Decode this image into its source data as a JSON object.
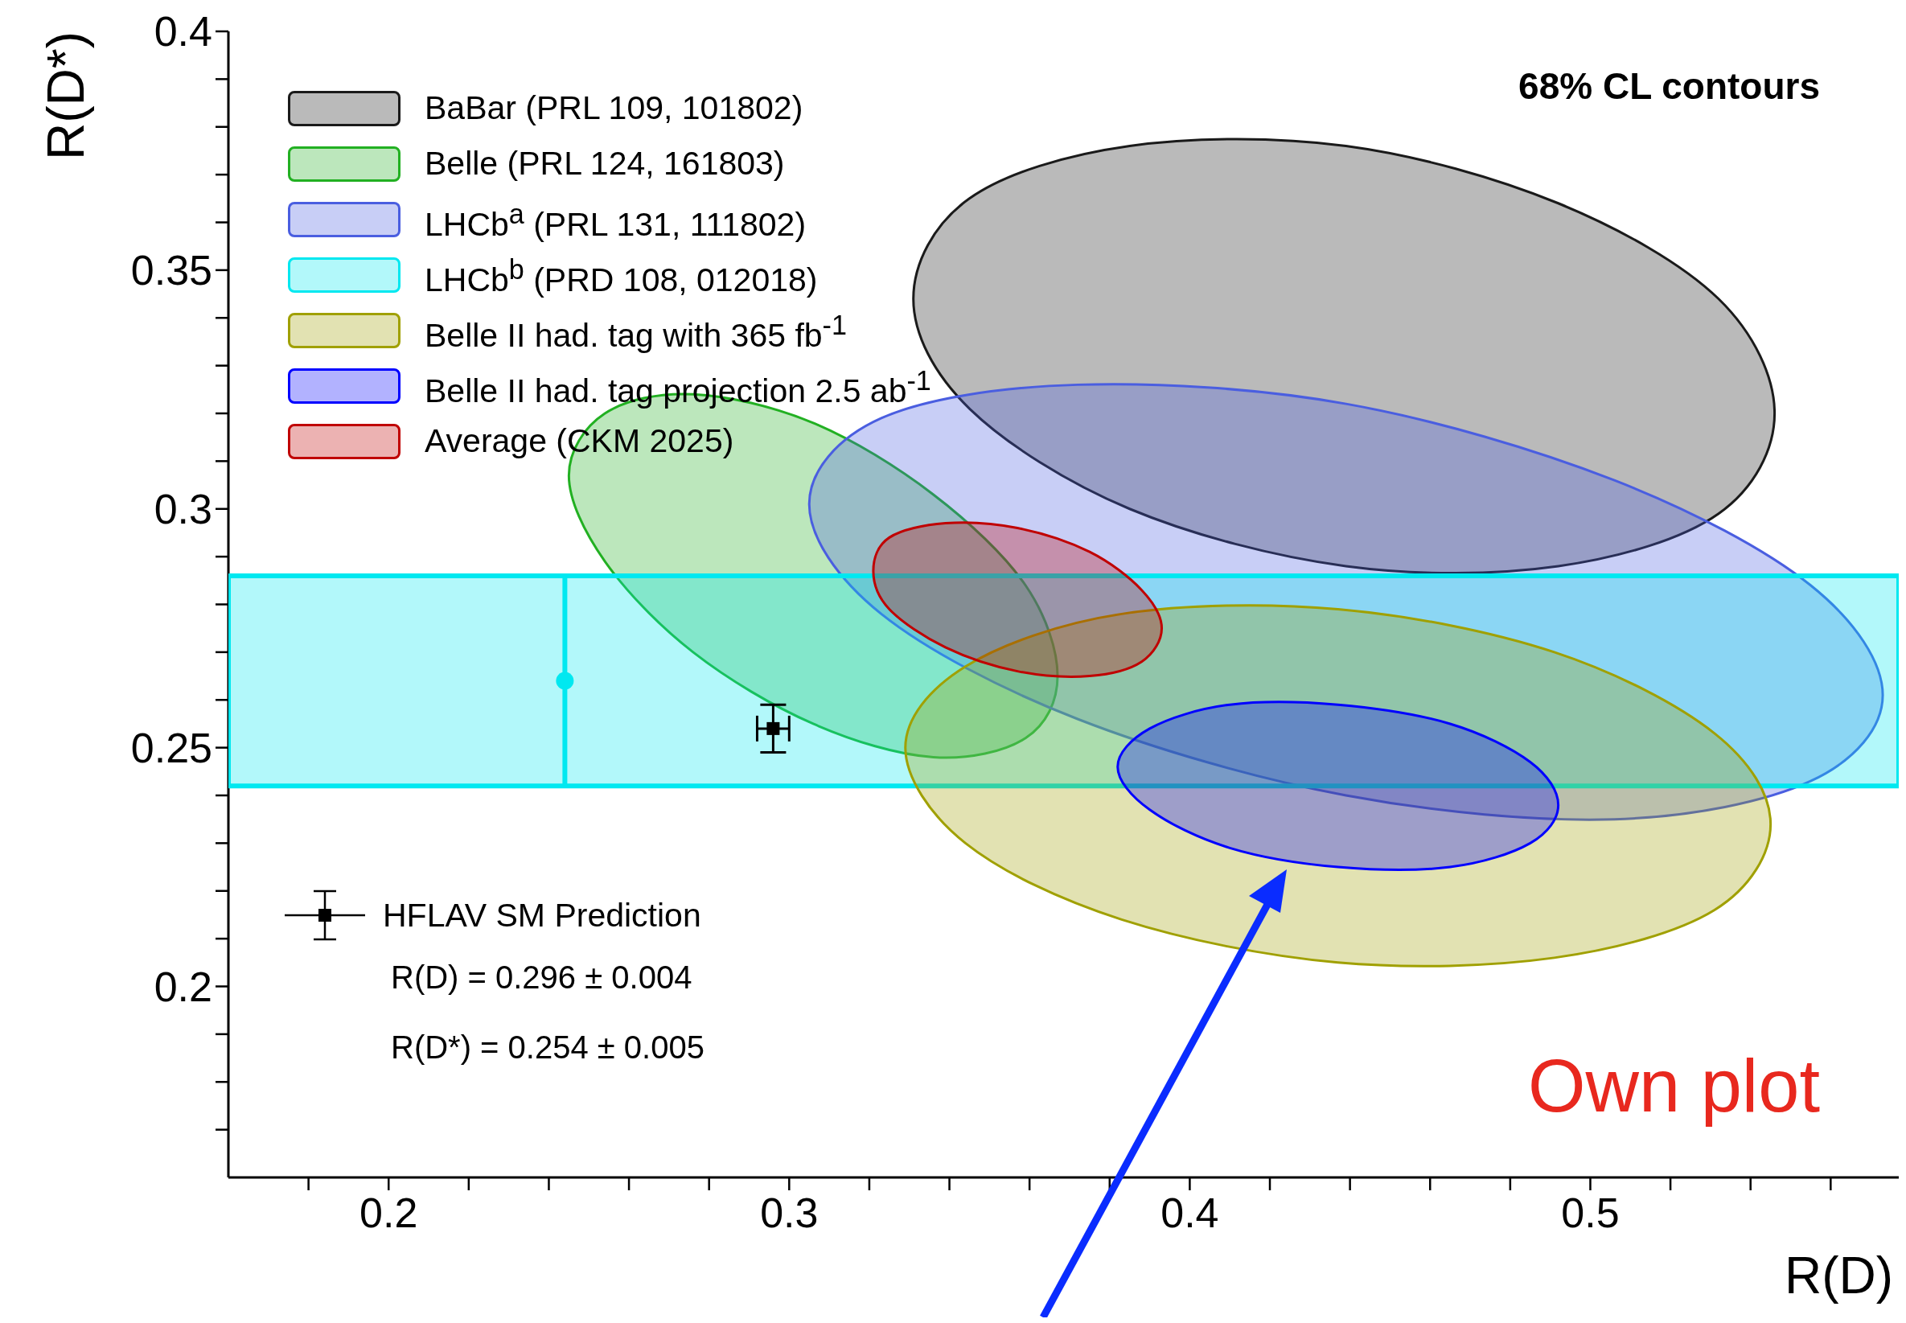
{
  "chart_data": {
    "type": "area",
    "xlabel": "R(D)",
    "ylabel": "R(D*)",
    "xlim": [
      0.16,
      0.577
    ],
    "ylim": [
      0.16,
      0.4
    ],
    "xticks": [
      {
        "value": 0.18,
        "label": null
      },
      0.2,
      {
        "value": 0.22,
        "label": null
      },
      {
        "value": 0.24,
        "label": null
      },
      {
        "value": 0.26,
        "label": null
      },
      {
        "value": 0.28,
        "label": null
      },
      0.3,
      {
        "value": 0.32,
        "label": null
      },
      {
        "value": 0.34,
        "label": null
      },
      {
        "value": 0.36,
        "label": null
      },
      {
        "value": 0.38,
        "label": null
      },
      0.4,
      {
        "value": 0.42,
        "label": null
      },
      {
        "value": 0.44,
        "label": null
      },
      {
        "value": 0.46,
        "label": null
      },
      {
        "value": 0.48,
        "label": null
      },
      0.5,
      {
        "value": 0.52,
        "label": null
      },
      {
        "value": 0.54,
        "label": null
      },
      {
        "value": 0.56,
        "label": null
      }
    ],
    "yticks": [
      {
        "value": 0.17,
        "label": null
      },
      {
        "value": 0.18,
        "label": null
      },
      {
        "value": 0.19,
        "label": null
      },
      0.2,
      {
        "value": 0.21,
        "label": null
      },
      {
        "value": 0.22,
        "label": null
      },
      {
        "value": 0.23,
        "label": null
      },
      {
        "value": 0.24,
        "label": null
      },
      0.25,
      {
        "value": 0.26,
        "label": null
      },
      {
        "value": 0.27,
        "label": null
      },
      {
        "value": 0.28,
        "label": null
      },
      {
        "value": 0.29,
        "label": null
      },
      0.3,
      {
        "value": 0.31,
        "label": null
      },
      {
        "value": 0.32,
        "label": null
      },
      {
        "value": 0.33,
        "label": null
      },
      {
        "value": 0.34,
        "label": null
      },
      0.35,
      {
        "value": 0.36,
        "label": null
      },
      {
        "value": 0.37,
        "label": null
      },
      {
        "value": 0.38,
        "label": null
      },
      {
        "value": 0.39,
        "label": null
      },
      0.4
    ],
    "legend": "top left",
    "series": [
      {
        "name": "BaBar (PRL 109, 101802)",
        "color": "#1a1a1a",
        "x": [
          0.546,
          0.532,
          0.492,
          0.439,
          0.385,
          0.345,
          0.331,
          0.345,
          0.385,
          0.439,
          0.492,
          0.532
        ],
        "values": [
          0.32,
          0.299,
          0.288,
          0.288,
          0.3,
          0.321,
          0.344,
          0.365,
          0.376,
          0.376,
          0.364,
          0.344
        ]
      },
      {
        "name": "Belle (PRL 124, 161803)",
        "color": "#22b022",
        "x": [
          0.367,
          0.359,
          0.336,
          0.306,
          0.276,
          0.254,
          0.245,
          0.254,
          0.276,
          0.306,
          0.336,
          0.359
        ],
        "values": [
          0.265,
          0.252,
          0.248,
          0.255,
          0.27,
          0.289,
          0.307,
          0.32,
          0.324,
          0.318,
          0.303,
          0.284
        ]
      },
      {
        "name": "LHCb$^{a}$ (PRL 131, 111802)",
        "color": "#4a5ee0",
        "x": [
          0.573,
          0.555,
          0.506,
          0.439,
          0.372,
          0.323,
          0.305,
          0.323,
          0.372,
          0.439,
          0.506,
          0.555
        ],
        "values": [
          0.261,
          0.243,
          0.235,
          0.24,
          0.256,
          0.278,
          0.301,
          0.319,
          0.326,
          0.322,
          0.306,
          0.284
        ]
      },
      {
        "name": "LHCb$^{b}$ (PRD 108, 012018)",
        "color": "#00e8f0",
        "x": [
          0.16,
          0.577,
          0.577,
          0.16
        ],
        "values": [
          0.242,
          0.242,
          0.286,
          0.286
        ]
      },
      {
        "name": "Belle II had. tag with 365 fb$^{-1}$",
        "color": "#a0a000",
        "x": [
          0.545,
          0.531,
          0.491,
          0.437,
          0.383,
          0.344,
          0.329,
          0.344,
          0.383,
          0.437,
          0.491,
          0.531
        ],
        "values": [
          0.234,
          0.216,
          0.206,
          0.205,
          0.214,
          0.23,
          0.25,
          0.267,
          0.278,
          0.279,
          0.27,
          0.253
        ]
      },
      {
        "name": "Belle II had. tag projection 2.5 ab$^{-1}$",
        "color": "#0000ff",
        "x": [
          0.492,
          0.485,
          0.465,
          0.437,
          0.41,
          0.39,
          0.382,
          0.39,
          0.41,
          0.437,
          0.465,
          0.485
        ],
        "values": [
          0.238,
          0.23,
          0.225,
          0.225,
          0.229,
          0.237,
          0.246,
          0.254,
          0.259,
          0.259,
          0.255,
          0.247
        ]
      },
      {
        "name": "Average (CKM 2025)",
        "color": "#c00000",
        "x": [
          0.393,
          0.388,
          0.375,
          0.357,
          0.339,
          0.325,
          0.321,
          0.325,
          0.339,
          0.357,
          0.375,
          0.388
        ],
        "values": [
          0.275,
          0.268,
          0.265,
          0.266,
          0.271,
          0.279,
          0.287,
          0.294,
          0.297,
          0.296,
          0.291,
          0.283
        ]
      },
      {
        "type": "scatter",
        "color": "#00e8f0",
        "marker": "circle",
        "x": [
          0.244
        ],
        "values": [
          0.264
        ],
        "errors": [
          0.022
        ]
      },
      {
        "type": "scatter",
        "name": "HFLAV SM Prediction",
        "color": "#000000",
        "marker": "square",
        "x": [
          0.296
        ],
        "values": [
          0.254
        ],
        "errors": [
          0.005
        ],
        "xerrors": [
          0.004
        ]
      }
    ],
    "annotations": [
      "68% CL contours",
      "R(D) = 0.296 ± 0.004",
      "R(D*) = 0.254 ± 0.005",
      "Own plot"
    ]
  }
}
